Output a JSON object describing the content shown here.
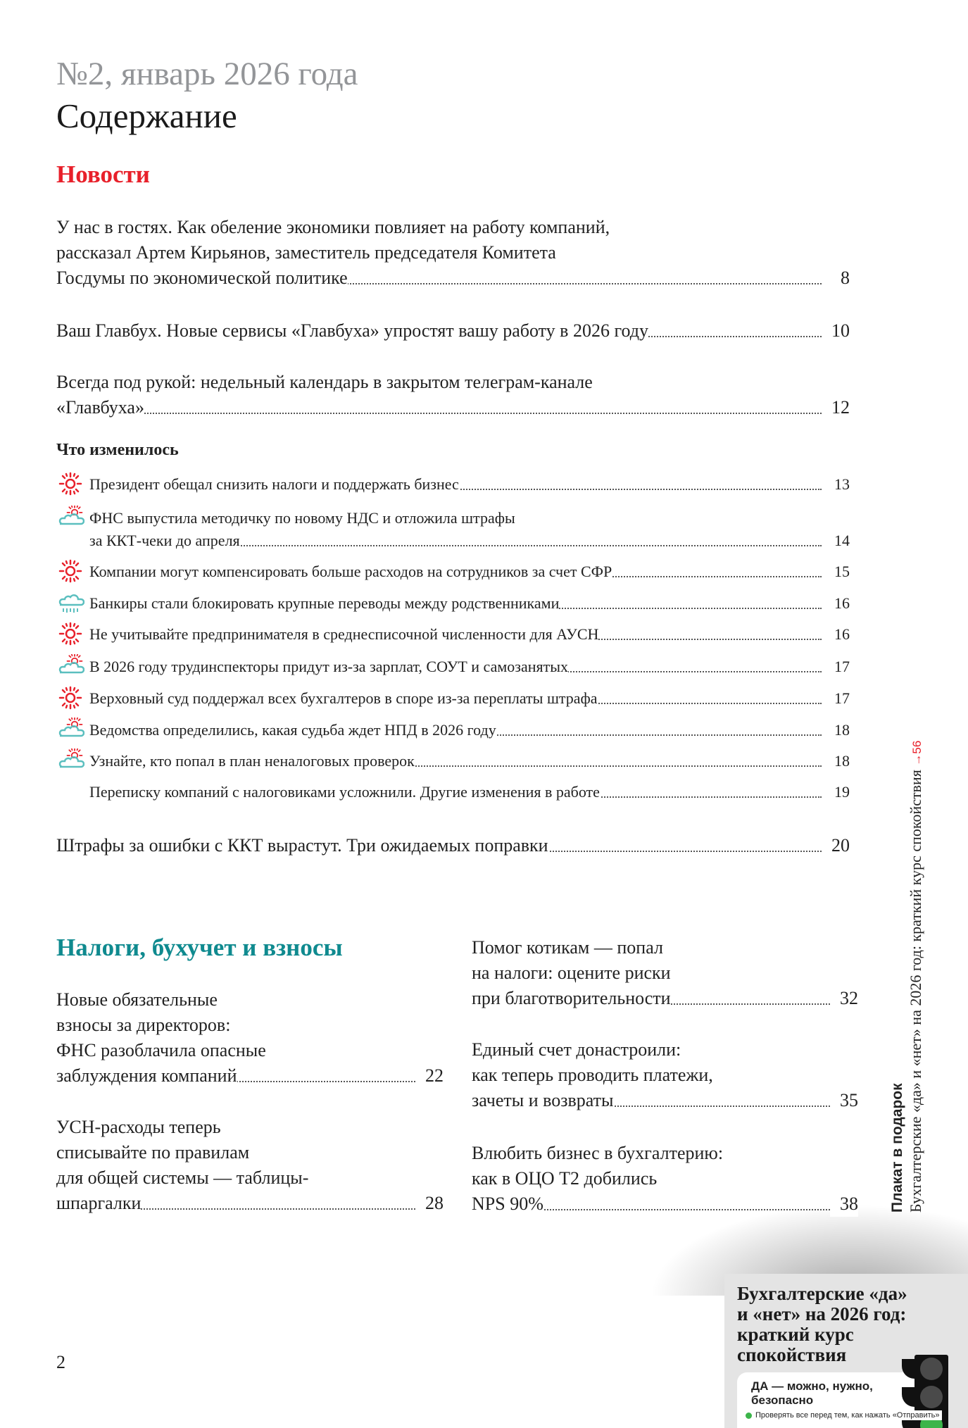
{
  "header": {
    "issue": "№2, январь 2026 года",
    "title": "Содержание"
  },
  "news": {
    "heading": "Новости",
    "entries": [
      {
        "title": "У нас в гостях. Как обеление экономики повлияет на работу компаний,\nрассказал Артем Кирьянов, заместитель председателя Комитета\nГосдумы по экономической политике",
        "page": "8"
      },
      {
        "title": "Ваш Главбух. Новые сервисы «Главбуха» упростят вашу работу в 2026 году",
        "page": "10"
      },
      {
        "title": "Всегда под рукой: недельный календарь в закрытом телеграм-канале\n«Главбуха»",
        "page": "12"
      }
    ],
    "changed_heading": "Что изменилось",
    "changed": [
      {
        "icon": "sun-icon",
        "title": "Президент обещал снизить налоги и поддержать бизнес",
        "page": "13"
      },
      {
        "icon": "partly-cloudy-icon",
        "title": "ФНС выпустила методичку по новому НДС и отложила штрафы\nза ККТ-чеки до апреля",
        "page": "14"
      },
      {
        "icon": "sun-icon",
        "title": "Компании могут компенсировать больше расходов на сотрудников за счет СФР",
        "page": "15"
      },
      {
        "icon": "rain-cloud-icon",
        "title": "Банкиры стали блокировать крупные переводы между родственниками",
        "page": "16"
      },
      {
        "icon": "sun-icon",
        "title": "Не учитывайте предпринимателя в среднесписочной численности для АУСН",
        "page": "16"
      },
      {
        "icon": "partly-cloudy-icon",
        "title": "В 2026 году трудинспекторы придут из-за зарплат, СОУТ и самозанятых",
        "page": "17"
      },
      {
        "icon": "sun-icon",
        "title": "Верховный суд поддержал всех бухгалтеров в споре из-за переплаты штрафа",
        "page": "17"
      },
      {
        "icon": "partly-cloudy-icon",
        "title": "Ведомства определились, какая судьба ждет НПД в 2026 году",
        "page": "18"
      },
      {
        "icon": "partly-cloudy-icon",
        "title": "Узнайте, кто попал в план неналоговых проверок",
        "page": "18"
      },
      {
        "icon": "",
        "title": "Переписку компаний с налоговиками усложнили. Другие изменения в работе",
        "page": "19"
      }
    ],
    "last": {
      "title": "Штрафы за ошибки с ККТ вырастут. Три ожидаемых поправки",
      "page": "20"
    }
  },
  "taxes": {
    "heading": "Налоги, бухучет и взносы",
    "left": [
      {
        "title": "Новые обязательные\nвзносы за директоров:\nФНС разоблачила опасные\nзаблуждения компаний",
        "page": "22"
      },
      {
        "title": "УСН-расходы теперь\nсписывайте по правилам\nдля общей системы — таблицы-\nшпаргалки",
        "page": "28"
      }
    ],
    "right": [
      {
        "title": "Помог котикам — попал\nна налоги: оцените риски\nпри благотворительности",
        "page": "32"
      },
      {
        "title": "Единый счет донастроили:\nкак теперь проводить платежи,\nзачеты и возвраты",
        "page": "35"
      },
      {
        "title": "Влюбить бизнес в бухгалтерию:\nкак в ОЦО Т2 добились\nNPS 90%",
        "page": "38"
      }
    ]
  },
  "sidebar": {
    "label": "Плакат в подарок",
    "text": "Бухгалтерские «да» и «нет» на 2026 год: краткий курс спокойствия ",
    "ref": "→56"
  },
  "poster": {
    "title": "Бухгалтерские «да»\nи «нет» на 2026 год:\nкраткий курс\nспокойствия",
    "yes_heading": "ДА — можно, нужно,\nбезопасно",
    "item": "Проверять все перед тем, как нажать «Отправить»"
  },
  "page_number": "2",
  "colors": {
    "news": "#e8202a",
    "taxes": "#0f8a8f",
    "issue": "#939598",
    "sun": "#e8202a",
    "cloud": "#5bbfbf"
  }
}
